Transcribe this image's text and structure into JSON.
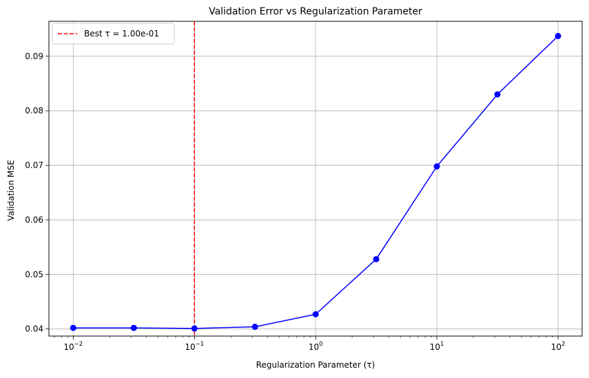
{
  "chart_data": {
    "type": "line",
    "title": "Validation Error vs Regularization Parameter",
    "xlabel": "Regularization Parameter (τ)",
    "ylabel": "Validation MSE",
    "x_scale": "log",
    "xlim": [
      0.0063,
      158
    ],
    "ylim": [
      0.0387,
      0.0964
    ],
    "grid": true,
    "legend_position": "upper-left",
    "x_ticks": [
      {
        "value": 0.01,
        "base": "10",
        "exp": "−2"
      },
      {
        "value": 0.1,
        "base": "10",
        "exp": "−1"
      },
      {
        "value": 1,
        "base": "10",
        "exp": "0"
      },
      {
        "value": 10,
        "base": "10",
        "exp": "1"
      },
      {
        "value": 100,
        "base": "10",
        "exp": "2"
      }
    ],
    "y_ticks": [
      {
        "value": 0.04,
        "label": "0.04"
      },
      {
        "value": 0.05,
        "label": "0.05"
      },
      {
        "value": 0.06,
        "label": "0.06"
      },
      {
        "value": 0.07,
        "label": "0.07"
      },
      {
        "value": 0.08,
        "label": "0.08"
      },
      {
        "value": 0.09,
        "label": "0.09"
      }
    ],
    "series": [
      {
        "color": "#0000ff",
        "marker": "circle",
        "x": [
          0.01,
          0.0316,
          0.1,
          0.316,
          1,
          3.16,
          10,
          31.6,
          100
        ],
        "y": [
          0.0402,
          0.0402,
          0.0401,
          0.0404,
          0.0427,
          0.0528,
          0.0698,
          0.083,
          0.0937
        ]
      }
    ],
    "vline": {
      "x": 0.1,
      "color": "#ff0000",
      "style": "dashed",
      "label": "Best τ = 1.00e-01"
    }
  }
}
